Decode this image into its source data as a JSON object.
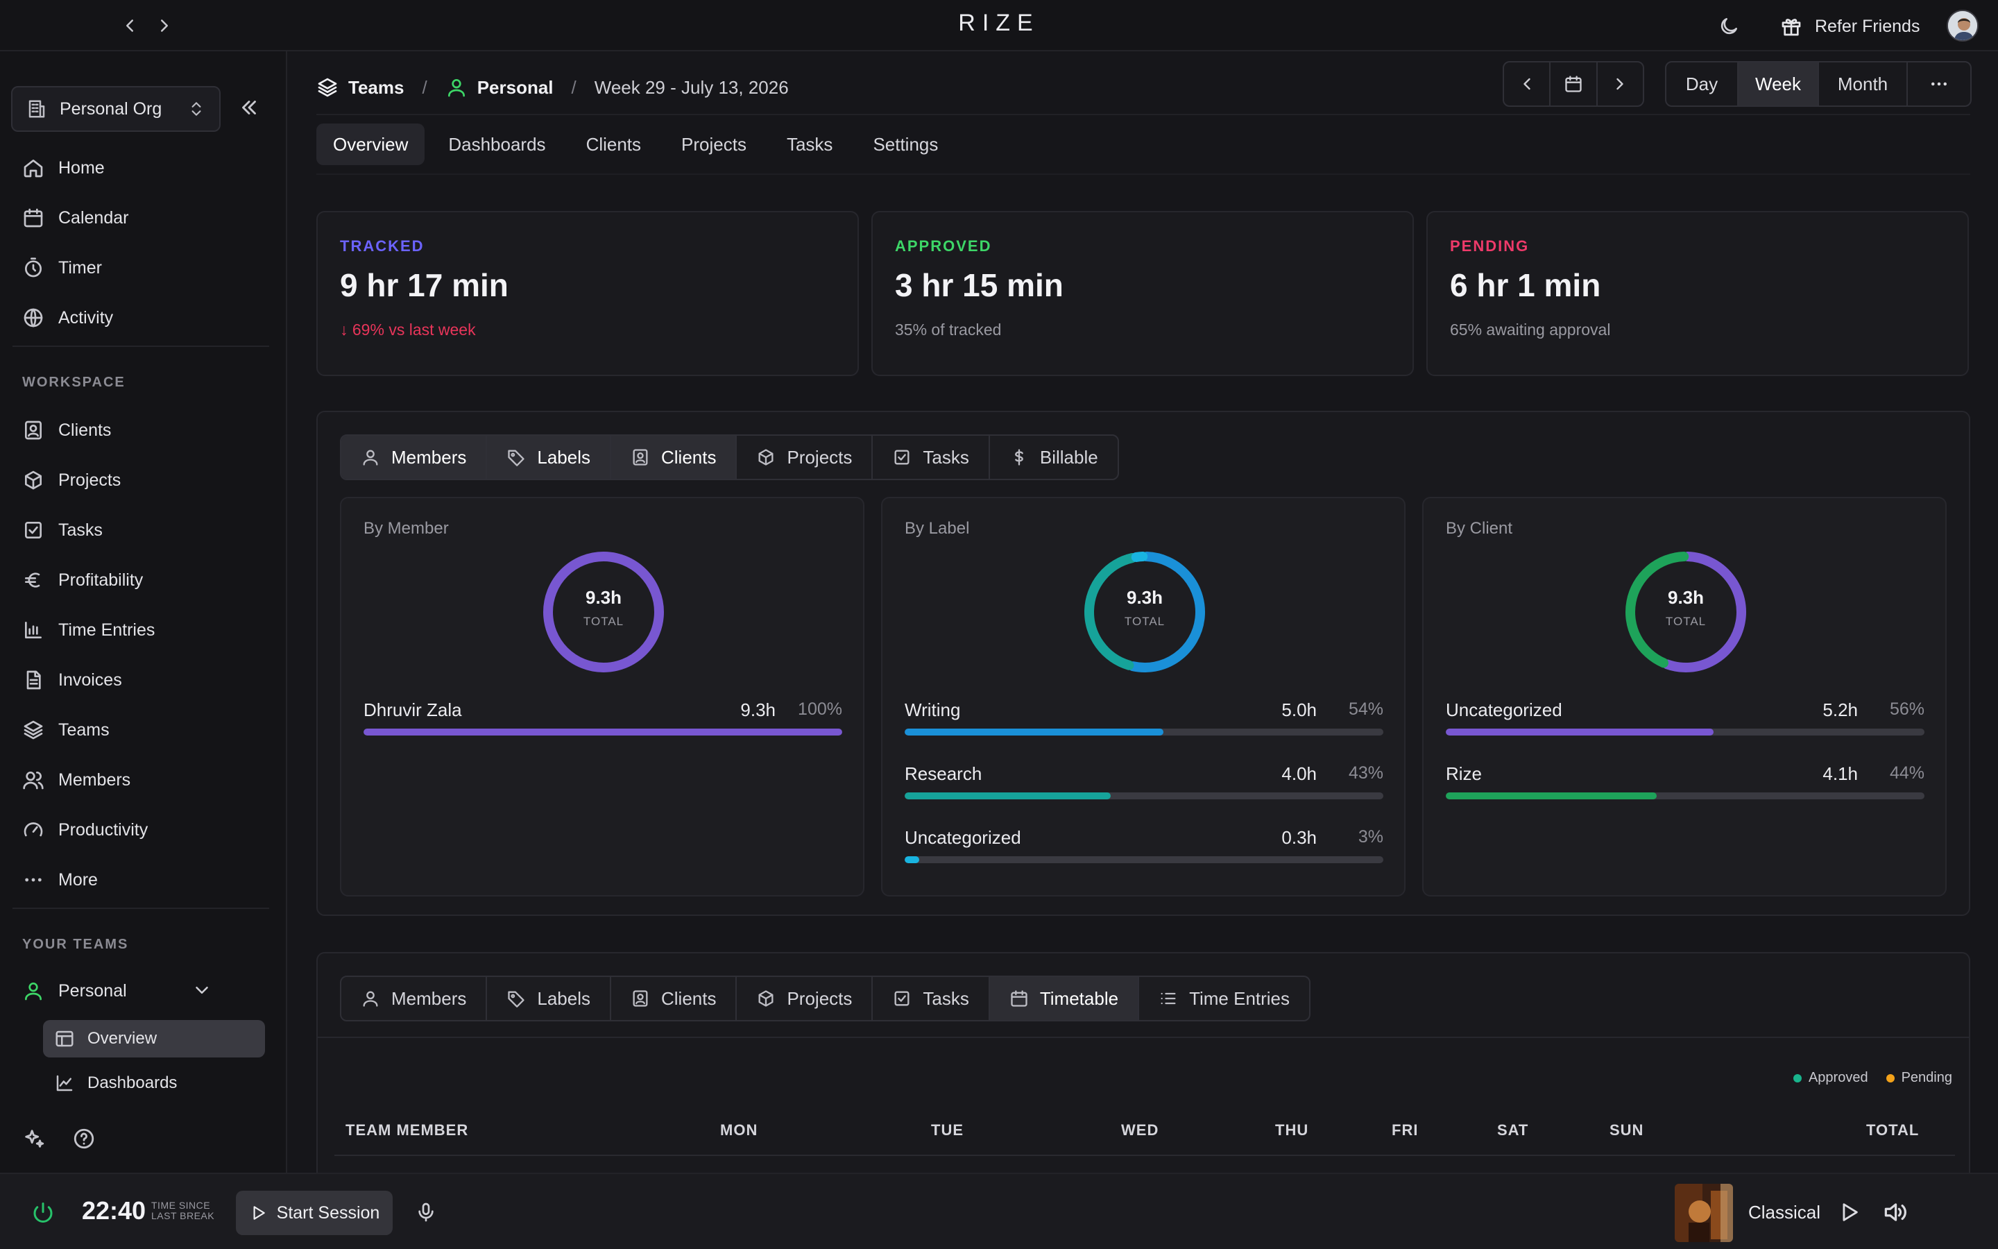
{
  "app": {
    "brand": "RIZE"
  },
  "topbar": {
    "refer_label": "Refer Friends"
  },
  "sidebar": {
    "org_name": "Personal Org",
    "main_items": [
      {
        "label": "Home",
        "icon": "home-icon"
      },
      {
        "label": "Calendar",
        "icon": "calendar-icon"
      },
      {
        "label": "Timer",
        "icon": "timer-icon"
      },
      {
        "label": "Activity",
        "icon": "activity-icon"
      }
    ],
    "workspace_title": "WORKSPACE",
    "workspace_items": [
      {
        "label": "Clients",
        "icon": "client-badge-icon"
      },
      {
        "label": "Projects",
        "icon": "box-icon"
      },
      {
        "label": "Tasks",
        "icon": "checkbox-icon"
      },
      {
        "label": "Profitability",
        "icon": "euro-icon"
      },
      {
        "label": "Time Entries",
        "icon": "bar-chart-icon"
      },
      {
        "label": "Invoices",
        "icon": "invoice-icon"
      },
      {
        "label": "Teams",
        "icon": "layers-icon"
      },
      {
        "label": "Members",
        "icon": "users-icon"
      },
      {
        "label": "Productivity",
        "icon": "gauge-icon"
      },
      {
        "label": "More",
        "icon": "more-icon"
      }
    ],
    "teams_title": "YOUR TEAMS",
    "team_name": "Personal",
    "team_subitems": [
      {
        "label": "Overview",
        "icon": "layout-icon",
        "active": true
      },
      {
        "label": "Dashboards",
        "icon": "line-chart-icon",
        "active": false
      }
    ]
  },
  "header": {
    "breadcrumb": {
      "teams": "Teams",
      "personal": "Personal",
      "week": "Week 29 - July 13, 2026"
    },
    "range": {
      "day": "Day",
      "week": "Week",
      "month": "Month",
      "active": "Week"
    }
  },
  "tabs": [
    "Overview",
    "Dashboards",
    "Clients",
    "Projects",
    "Tasks",
    "Settings"
  ],
  "stats": {
    "tracked": {
      "label": "TRACKED",
      "value": "9 hr 17 min",
      "sub": "↓ 69% vs last week",
      "color": "#6c63ff",
      "sub_color": "#e8355a"
    },
    "approved": {
      "label": "APPROVED",
      "value": "3 hr 15 min",
      "sub": "35% of tracked",
      "color": "#3dd667"
    },
    "pending": {
      "label": "PENDING",
      "value": "6 hr 1 min",
      "sub": "65% awaiting approval",
      "color": "#ee3a6a"
    }
  },
  "breakdown_tabs": [
    {
      "label": "Members",
      "icon": "user-icon"
    },
    {
      "label": "Labels",
      "icon": "tag-icon"
    },
    {
      "label": "Clients",
      "icon": "client-badge-icon"
    },
    {
      "label": "Projects",
      "icon": "box-icon"
    },
    {
      "label": "Tasks",
      "icon": "checkbox-icon"
    },
    {
      "label": "Billable",
      "icon": "dollar-icon"
    }
  ],
  "by_member": {
    "title": "By Member",
    "total_value": "9.3h",
    "total_label": "TOTAL",
    "rows": [
      {
        "name": "Dhruvir Zala",
        "hours": "9.3h",
        "pct": "100%",
        "fraction": 1.0,
        "color": "#7857d1"
      }
    ]
  },
  "by_label": {
    "title": "By Label",
    "total_value": "9.3h",
    "total_label": "TOTAL",
    "rows": [
      {
        "name": "Writing",
        "hours": "5.0h",
        "pct": "54%",
        "fraction": 0.54,
        "color": "#1a90d8"
      },
      {
        "name": "Research",
        "hours": "4.0h",
        "pct": "43%",
        "fraction": 0.43,
        "color": "#16a39a"
      },
      {
        "name": "Uncategorized",
        "hours": "0.3h",
        "pct": "3%",
        "fraction": 0.03,
        "color": "#19b4e0"
      }
    ]
  },
  "by_client": {
    "title": "By Client",
    "total_value": "9.3h",
    "total_label": "TOTAL",
    "rows": [
      {
        "name": "Uncategorized",
        "hours": "5.2h",
        "pct": "56%",
        "fraction": 0.56,
        "color": "#7857d1"
      },
      {
        "name": "Rize",
        "hours": "4.1h",
        "pct": "44%",
        "fraction": 0.44,
        "color": "#1ea35a"
      }
    ]
  },
  "timetable_tabs": [
    {
      "label": "Members",
      "icon": "user-icon"
    },
    {
      "label": "Labels",
      "icon": "tag-icon"
    },
    {
      "label": "Clients",
      "icon": "client-badge-icon"
    },
    {
      "label": "Projects",
      "icon": "box-icon"
    },
    {
      "label": "Tasks",
      "icon": "checkbox-icon"
    },
    {
      "label": "Timetable",
      "icon": "calendar-icon"
    },
    {
      "label": "Time Entries",
      "icon": "list-icon"
    }
  ],
  "legend": {
    "approved": "Approved",
    "pending": "Pending",
    "approved_color": "#19b48c",
    "pending_color": "#f3a21a"
  },
  "timetable_headers": [
    "TEAM MEMBER",
    "MON",
    "TUE",
    "WED",
    "THU",
    "FRI",
    "SAT",
    "SUN",
    "TOTAL"
  ],
  "bottom": {
    "time": "22:40",
    "since_line1": "TIME SINCE",
    "since_line2": "LAST BREAK",
    "start_label": "Start Session",
    "track": "Classical"
  }
}
